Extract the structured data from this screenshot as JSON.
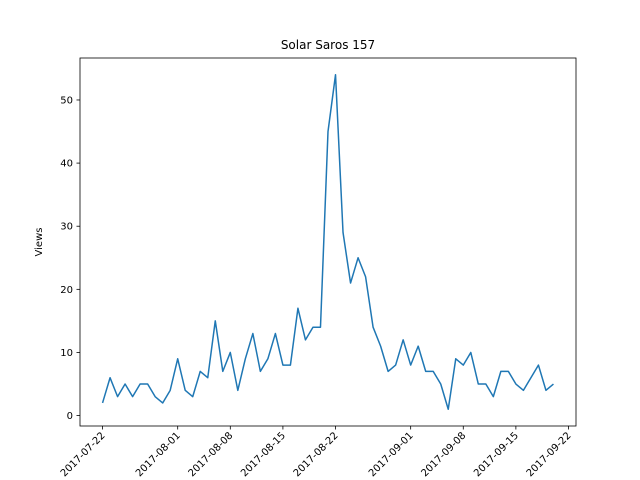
{
  "chart_data": {
    "type": "line",
    "title": "Solar Saros 157",
    "y_label": "Views",
    "color": "#1f77b4",
    "x": [
      "2017-07-22",
      "2017-07-23",
      "2017-07-24",
      "2017-07-25",
      "2017-07-26",
      "2017-07-27",
      "2017-07-28",
      "2017-07-29",
      "2017-07-30",
      "2017-07-31",
      "2017-08-01",
      "2017-08-02",
      "2017-08-03",
      "2017-08-04",
      "2017-08-05",
      "2017-08-06",
      "2017-08-07",
      "2017-08-08",
      "2017-08-09",
      "2017-08-10",
      "2017-08-11",
      "2017-08-12",
      "2017-08-13",
      "2017-08-14",
      "2017-08-15",
      "2017-08-16",
      "2017-08-17",
      "2017-08-18",
      "2017-08-19",
      "2017-08-20",
      "2017-08-21",
      "2017-08-22",
      "2017-08-23",
      "2017-08-24",
      "2017-08-25",
      "2017-08-26",
      "2017-08-27",
      "2017-08-28",
      "2017-08-29",
      "2017-08-30",
      "2017-08-31",
      "2017-09-01",
      "2017-09-02",
      "2017-09-03",
      "2017-09-04",
      "2017-09-05",
      "2017-09-06",
      "2017-09-07",
      "2017-09-08",
      "2017-09-09",
      "2017-09-10",
      "2017-09-11",
      "2017-09-12",
      "2017-09-13",
      "2017-09-14",
      "2017-09-15",
      "2017-09-16",
      "2017-09-17",
      "2017-09-18",
      "2017-09-19",
      "2017-09-20"
    ],
    "values": [
      2,
      6,
      3,
      5,
      3,
      5,
      5,
      3,
      2,
      4,
      9,
      4,
      3,
      7,
      6,
      15,
      7,
      10,
      4,
      9,
      13,
      7,
      9,
      13,
      8,
      8,
      17,
      12,
      14,
      14,
      45,
      54,
      29,
      21,
      25,
      22,
      14,
      11,
      7,
      8,
      12,
      8,
      11,
      7,
      7,
      5,
      1,
      9,
      8,
      10,
      5,
      5,
      3,
      7,
      7,
      5,
      4,
      6,
      8,
      4,
      5
    ],
    "xlim": [
      "2017-07-19",
      "2017-09-23"
    ],
    "xticks": [
      "2017-07-22",
      "2017-08-01",
      "2017-08-08",
      "2017-08-15",
      "2017-08-22",
      "2017-09-01",
      "2017-09-08",
      "2017-09-15",
      "2017-09-22"
    ],
    "ylim": [
      -1.65,
      56.65
    ],
    "yticks": [
      0,
      10,
      20,
      30,
      40,
      50
    ]
  }
}
